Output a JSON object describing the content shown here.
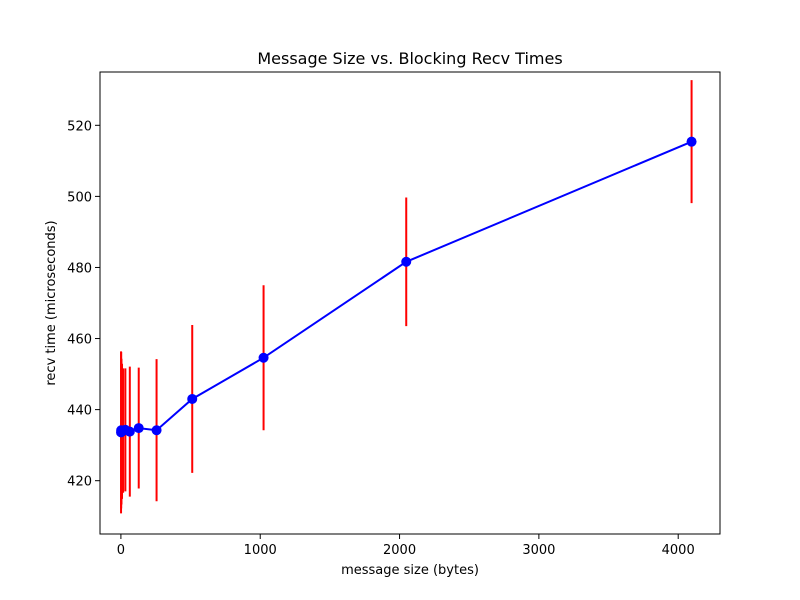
{
  "chart_data": {
    "type": "line",
    "title": "Message Size vs. Blocking Recv Times",
    "xlabel": "message size (bytes)",
    "ylabel": "recv time (microseconds)",
    "xlim": [
      -150,
      4300
    ],
    "ylim": [
      405,
      535
    ],
    "xticks": [
      0,
      1000,
      2000,
      3000,
      4000
    ],
    "yticks": [
      420,
      440,
      460,
      480,
      500,
      520
    ],
    "grid": false,
    "series": [
      {
        "color": "#0000ff",
        "error_color": "#ff0000",
        "x": [
          1,
          2,
          4,
          8,
          16,
          32,
          64,
          128,
          256,
          512,
          1024,
          2048,
          4096
        ],
        "y": [
          433.6,
          434.2,
          433.8,
          433.9,
          434.1,
          434.3,
          433.8,
          434.8,
          434.2,
          443.0,
          454.6,
          481.6,
          515.4
        ],
        "err": [
          22.8,
          22.0,
          20.5,
          19.0,
          17.5,
          17.3,
          18.3,
          17.0,
          20.0,
          20.8,
          20.4,
          18.1,
          17.3
        ]
      }
    ]
  }
}
